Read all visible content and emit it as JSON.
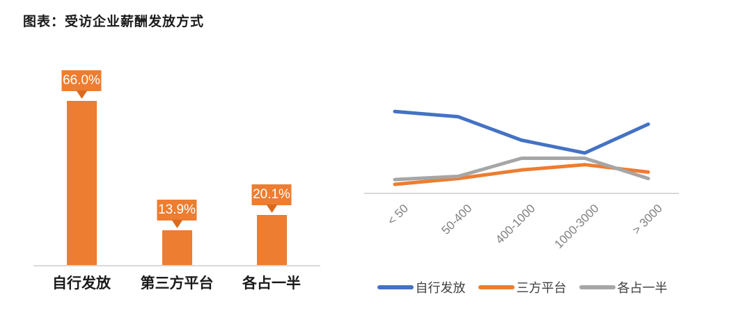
{
  "title": "图表：受访企业薪酬发放方式",
  "colors": {
    "bar": "#ED7D31",
    "callout_bg": "#ED7D31",
    "callout_pointer": "#DB6A1E",
    "callout_text": "#FFFFFF",
    "series_blue": "#4472C4",
    "series_orange": "#ED7D31",
    "series_gray": "#A6A6A6",
    "axis_line": "#D9D9D9",
    "tick_text": "#808080",
    "legend_text": "#404040",
    "category_text": "#1A1A1A",
    "title_text": "#1A1A1A"
  },
  "chart_data": [
    {
      "type": "bar",
      "title": "",
      "xlabel": "",
      "ylabel": "",
      "categories": [
        "自行发放",
        "第三方平台",
        "各占一半"
      ],
      "values": [
        66.0,
        13.9,
        20.1
      ],
      "data_labels": [
        "66.0%",
        "13.9%",
        "20.1%"
      ],
      "bar_color": "#ED7D31",
      "ylim": [
        0,
        80
      ],
      "y_axis_visible": false,
      "grid": false
    },
    {
      "type": "line",
      "title": "",
      "xlabel": "",
      "ylabel": "",
      "categories": [
        "< 50",
        "50-400",
        "400-1000",
        "1000-3000",
        "> 3000"
      ],
      "series": [
        {
          "name": "自行发放",
          "color": "#4472C4",
          "values": [
            77,
            72,
            50,
            38,
            65
          ]
        },
        {
          "name": "三方平台",
          "color": "#ED7D31",
          "values": [
            8.5,
            14,
            22,
            27,
            20
          ]
        },
        {
          "name": "各占一半",
          "color": "#A6A6A6",
          "values": [
            13,
            16,
            33,
            33,
            14
          ]
        }
      ],
      "ylim": [
        0,
        90
      ],
      "y_axis_visible": false,
      "grid": false,
      "legend_position": "bottom"
    }
  ]
}
